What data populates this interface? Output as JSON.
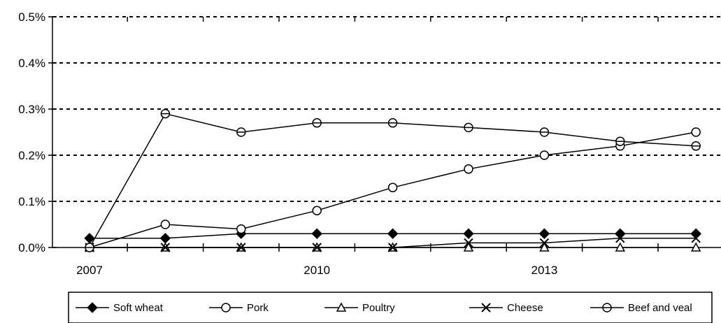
{
  "chart_data": {
    "type": "line",
    "title": "",
    "xlabel": "",
    "ylabel": "",
    "x": [
      2007,
      2008,
      2009,
      2010,
      2011,
      2012,
      2013,
      2014,
      2015
    ],
    "x_tick_labels": [
      "2007",
      "2010",
      "2013"
    ],
    "x_tick_values": [
      2007,
      2010,
      2013
    ],
    "ylim": [
      0,
      0.5
    ],
    "y_ticks": [
      0.0,
      0.1,
      0.2,
      0.3,
      0.4,
      0.5
    ],
    "y_tick_labels": [
      "0.0%",
      "0.1%",
      "0.2%",
      "0.3%",
      "0.4%",
      "0.5%"
    ],
    "grid": "horizontal dotted",
    "legend_position": "bottom",
    "series": [
      {
        "name": "Soft wheat",
        "marker": "diamond",
        "values": [
          0.02,
          0.02,
          0.03,
          0.03,
          0.03,
          0.03,
          0.03,
          0.03,
          0.03
        ]
      },
      {
        "name": "Pork",
        "marker": "circle-open",
        "values": [
          0.0,
          0.05,
          0.04,
          0.08,
          0.13,
          0.17,
          0.2,
          0.22,
          0.25
        ]
      },
      {
        "name": "Poultry",
        "marker": "triangle-open",
        "values": [
          0.0,
          0.0,
          0.0,
          0.0,
          0.0,
          0.0,
          0.0,
          0.0,
          0.0
        ]
      },
      {
        "name": "Cheese",
        "marker": "x",
        "values": [
          0.0,
          0.0,
          0.0,
          0.0,
          0.0,
          0.01,
          0.01,
          0.02,
          0.02
        ]
      },
      {
        "name": "Beef and veal",
        "marker": "circle-crossed",
        "values": [
          0.0,
          0.29,
          0.25,
          0.27,
          0.27,
          0.26,
          0.25,
          0.23,
          0.22
        ]
      }
    ]
  }
}
